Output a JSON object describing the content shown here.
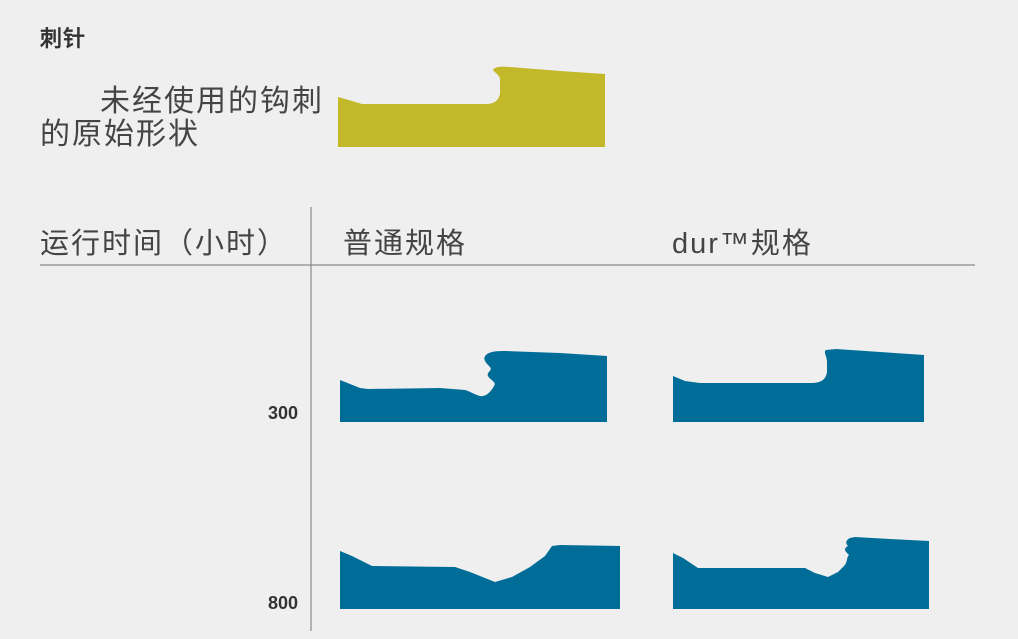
{
  "title": "刺针",
  "original": {
    "caption_lines": [
      "未经使用的钩刺",
      "的原始形状"
    ]
  },
  "table": {
    "headers": [
      "运行时间（小时）",
      "普通规格",
      "dur™规格"
    ],
    "rows": [
      {
        "hours": "300"
      },
      {
        "hours": "800"
      }
    ]
  },
  "colors": {
    "background": "#efefef",
    "text": "#444444",
    "rule": "#8a8a8a",
    "original_shape": "#c3b82a",
    "worn_shape": "#006d98"
  }
}
